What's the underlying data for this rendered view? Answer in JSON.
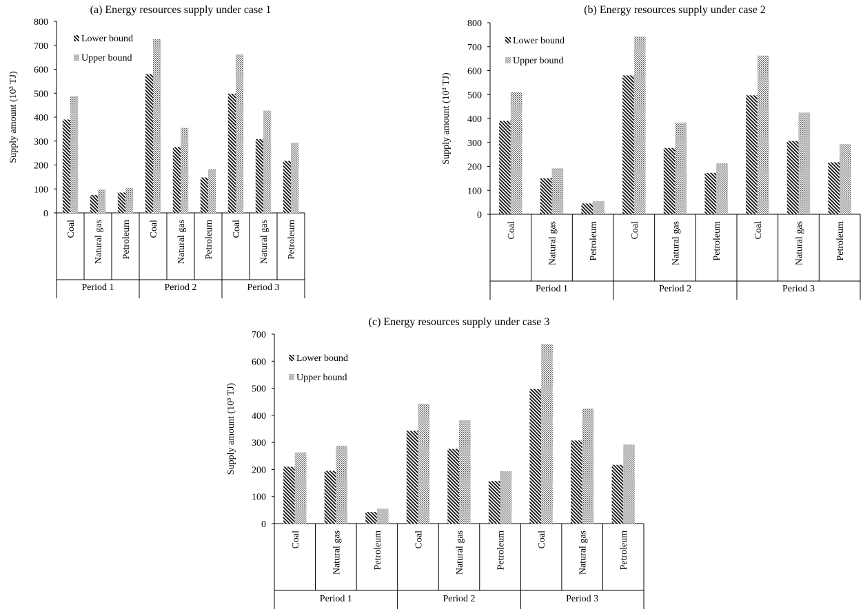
{
  "chart_data": [
    {
      "type": "bar",
      "title": "(a) Energy resources supply under case 1",
      "ylabel": "Supply amount (10³ TJ)",
      "xlabel": "",
      "ylim": [
        0,
        800
      ],
      "yticks": [
        0,
        100,
        200,
        300,
        400,
        500,
        600,
        700,
        800
      ],
      "groups": [
        "Period 1",
        "Period 2",
        "Period 3"
      ],
      "categories": [
        "Coal",
        "Natural gas",
        "Petroleum",
        "Coal",
        "Natural gas",
        "Petroleum",
        "Coal",
        "Natural gas",
        "Petroleum"
      ],
      "series": [
        {
          "name": "Lower bound",
          "values": [
            390,
            75,
            85,
            580,
            275,
            148,
            498,
            308,
            217
          ]
        },
        {
          "name": "Upper bound",
          "values": [
            488,
            97,
            103,
            725,
            355,
            183,
            662,
            427,
            293
          ]
        }
      ],
      "legend": "top-left",
      "grid": false
    },
    {
      "type": "bar",
      "title": "(b) Energy resources supply under case 2",
      "ylabel": "Supply amount (10³ TJ)",
      "xlabel": "",
      "ylim": [
        0,
        800
      ],
      "yticks": [
        0,
        100,
        200,
        300,
        400,
        500,
        600,
        700,
        800
      ],
      "groups": [
        "Period 1",
        "Period 2",
        "Period 3"
      ],
      "categories": [
        "Coal",
        "Natural gas",
        "Petroleum",
        "Coal",
        "Natural gas",
        "Petroleum",
        "Coal",
        "Natural gas",
        "Petroleum"
      ],
      "series": [
        {
          "name": "Lower bound",
          "values": [
            390,
            150,
            45,
            580,
            277,
            173,
            497,
            306,
            217
          ]
        },
        {
          "name": "Upper bound",
          "values": [
            510,
            192,
            55,
            742,
            383,
            213,
            663,
            425,
            293
          ]
        }
      ],
      "legend": "top-left",
      "grid": false
    },
    {
      "type": "bar",
      "title": "(c) Energy resources supply under case 3",
      "ylabel": "Supply amount (10³ TJ)",
      "xlabel": "",
      "ylim": [
        0,
        700
      ],
      "yticks": [
        0,
        100,
        200,
        300,
        400,
        500,
        600,
        700
      ],
      "groups": [
        "Period 1",
        "Period 2",
        "Period 3"
      ],
      "categories": [
        "Coal",
        "Natural gas",
        "Petroleum",
        "Coal",
        "Natural gas",
        "Petroleum",
        "Coal",
        "Natural gas",
        "Petroleum"
      ],
      "series": [
        {
          "name": "Lower bound",
          "values": [
            210,
            195,
            43,
            343,
            276,
            157,
            497,
            307,
            217
          ]
        },
        {
          "name": "Upper bound",
          "values": [
            263,
            287,
            55,
            443,
            382,
            193,
            663,
            425,
            292
          ]
        }
      ],
      "legend": "top-left",
      "grid": false
    }
  ]
}
